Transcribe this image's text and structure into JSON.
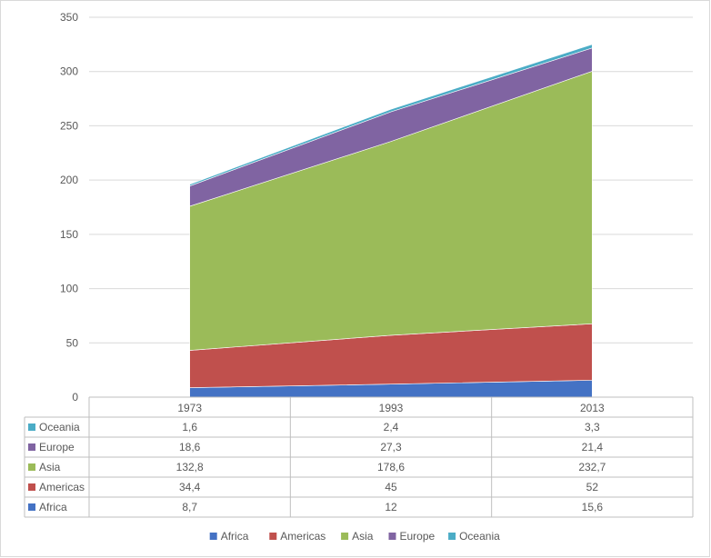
{
  "chart_data": {
    "type": "area",
    "stacked": true,
    "categories": [
      "1973",
      "1993",
      "2013"
    ],
    "series": [
      {
        "name": "Africa",
        "values": [
          8.7,
          12,
          15.6
        ],
        "labels": [
          "8,7",
          "12",
          "15,6"
        ],
        "color": "#4472c4"
      },
      {
        "name": "Americas",
        "values": [
          34.4,
          45,
          52
        ],
        "labels": [
          "34,4",
          "45",
          "52"
        ],
        "color": "#c0504d"
      },
      {
        "name": "Asia",
        "values": [
          132.8,
          178.6,
          232.7
        ],
        "labels": [
          "132,8",
          "178,6",
          "232,7"
        ],
        "color": "#9bbb59"
      },
      {
        "name": "Europe",
        "values": [
          18.6,
          27.3,
          21.4
        ],
        "labels": [
          "18,6",
          "27,3",
          "21,4"
        ],
        "color": "#8064a2"
      },
      {
        "name": "Oceania",
        "values": [
          1.6,
          2.4,
          3.3
        ],
        "labels": [
          "1,6",
          "2,4",
          "3,3"
        ],
        "color": "#4bacc6"
      }
    ],
    "ylim": [
      0,
      350
    ],
    "yticks": [
      0,
      50,
      100,
      150,
      200,
      250,
      300,
      350
    ],
    "grid": true,
    "data_table": true,
    "legend": "bottom"
  }
}
